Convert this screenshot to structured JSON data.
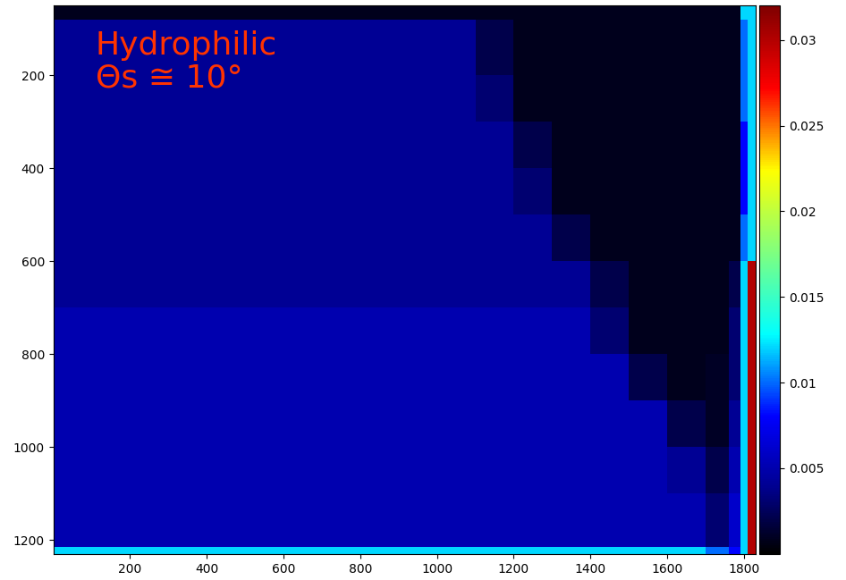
{
  "chart_data": {
    "type": "heatmap",
    "annotations": [
      "Hydrophilic",
      "Θs ≅ 10°"
    ],
    "xlim": [
      0,
      1830
    ],
    "ylim": [
      1230,
      50
    ],
    "xticks": [
      200,
      400,
      600,
      800,
      1000,
      1200,
      1400,
      1600,
      1800
    ],
    "yticks": [
      200,
      400,
      600,
      800,
      1000,
      1200
    ],
    "x_edges": [
      0,
      100,
      200,
      300,
      400,
      500,
      600,
      700,
      800,
      900,
      1000,
      1100,
      1200,
      1300,
      1400,
      1500,
      1600,
      1700,
      1760,
      1790,
      1810,
      1830
    ],
    "y_edges": [
      50,
      80,
      200,
      300,
      400,
      500,
      600,
      700,
      800,
      900,
      1000,
      1100,
      1200,
      1215,
      1230
    ],
    "cells": [
      [
        0.0008,
        0.0008,
        0.0008,
        0.0008,
        0.0008,
        0.0008,
        0.0008,
        0.0008,
        0.0008,
        0.0008,
        0.0008,
        0.0008,
        0.0008,
        0.0008,
        0.0008,
        0.0008,
        0.0008,
        0.0008,
        0.0008,
        0.012,
        0.012
      ],
      [
        0.004,
        0.004,
        0.004,
        0.004,
        0.004,
        0.004,
        0.004,
        0.004,
        0.004,
        0.004,
        0.004,
        0.002,
        0.0008,
        0.0008,
        0.0008,
        0.0008,
        0.0008,
        0.0008,
        0.0008,
        0.01,
        0.012
      ],
      [
        0.004,
        0.004,
        0.004,
        0.004,
        0.004,
        0.004,
        0.004,
        0.004,
        0.004,
        0.004,
        0.004,
        0.003,
        0.0008,
        0.0008,
        0.0008,
        0.0008,
        0.0008,
        0.0008,
        0.0008,
        0.01,
        0.012
      ],
      [
        0.004,
        0.004,
        0.004,
        0.004,
        0.004,
        0.004,
        0.004,
        0.004,
        0.004,
        0.004,
        0.004,
        0.004,
        0.002,
        0.0008,
        0.0008,
        0.0008,
        0.0008,
        0.0008,
        0.0008,
        0.008,
        0.012
      ],
      [
        0.004,
        0.004,
        0.004,
        0.004,
        0.004,
        0.004,
        0.004,
        0.004,
        0.004,
        0.004,
        0.004,
        0.004,
        0.003,
        0.0008,
        0.0008,
        0.0008,
        0.0008,
        0.0008,
        0.0008,
        0.008,
        0.012
      ],
      [
        0.004,
        0.004,
        0.004,
        0.004,
        0.004,
        0.004,
        0.004,
        0.004,
        0.004,
        0.004,
        0.004,
        0.004,
        0.004,
        0.002,
        0.0008,
        0.0008,
        0.0008,
        0.0008,
        0.0008,
        0.01,
        0.012
      ],
      [
        0.004,
        0.004,
        0.004,
        0.004,
        0.004,
        0.004,
        0.004,
        0.004,
        0.004,
        0.004,
        0.004,
        0.004,
        0.004,
        0.004,
        0.002,
        0.0008,
        0.0008,
        0.0008,
        0.002,
        0.012,
        0.03
      ],
      [
        0.005,
        0.005,
        0.005,
        0.005,
        0.005,
        0.005,
        0.005,
        0.005,
        0.005,
        0.005,
        0.005,
        0.005,
        0.005,
        0.005,
        0.003,
        0.0008,
        0.0008,
        0.0008,
        0.003,
        0.012,
        0.03
      ],
      [
        0.005,
        0.005,
        0.005,
        0.005,
        0.005,
        0.005,
        0.005,
        0.005,
        0.005,
        0.005,
        0.005,
        0.005,
        0.005,
        0.005,
        0.005,
        0.002,
        0.0008,
        0.001,
        0.003,
        0.012,
        0.03
      ],
      [
        0.005,
        0.005,
        0.005,
        0.005,
        0.005,
        0.005,
        0.005,
        0.005,
        0.005,
        0.005,
        0.005,
        0.005,
        0.005,
        0.005,
        0.005,
        0.005,
        0.002,
        0.001,
        0.004,
        0.012,
        0.03
      ],
      [
        0.005,
        0.005,
        0.005,
        0.005,
        0.005,
        0.005,
        0.005,
        0.005,
        0.005,
        0.005,
        0.005,
        0.005,
        0.005,
        0.005,
        0.005,
        0.005,
        0.004,
        0.002,
        0.005,
        0.012,
        0.03
      ],
      [
        0.005,
        0.005,
        0.005,
        0.005,
        0.005,
        0.005,
        0.005,
        0.005,
        0.005,
        0.005,
        0.005,
        0.005,
        0.005,
        0.005,
        0.005,
        0.005,
        0.005,
        0.003,
        0.006,
        0.012,
        0.03
      ],
      [
        0.005,
        0.005,
        0.005,
        0.005,
        0.005,
        0.005,
        0.005,
        0.005,
        0.005,
        0.005,
        0.005,
        0.005,
        0.005,
        0.005,
        0.005,
        0.005,
        0.005,
        0.003,
        0.006,
        0.012,
        0.03
      ],
      [
        0.012,
        0.012,
        0.012,
        0.012,
        0.012,
        0.012,
        0.012,
        0.012,
        0.012,
        0.012,
        0.012,
        0.012,
        0.012,
        0.012,
        0.012,
        0.012,
        0.012,
        0.01,
        0.008,
        0.012,
        0.03
      ]
    ],
    "colorbar_range": [
      0,
      0.032
    ],
    "colorbar_ticks": [
      0.005,
      0.01,
      0.015,
      0.02,
      0.025,
      0.03
    ]
  }
}
